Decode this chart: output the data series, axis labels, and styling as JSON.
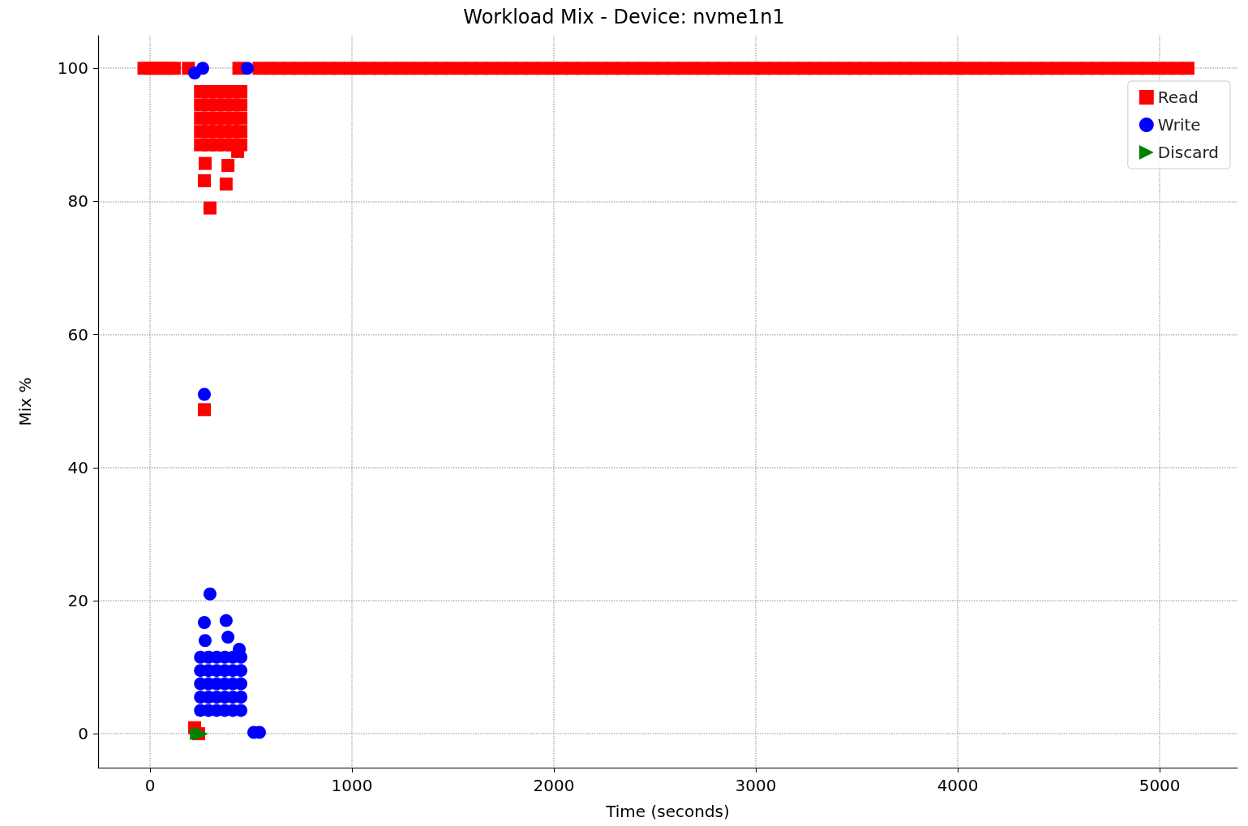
{
  "chart_data": {
    "type": "scatter",
    "title": "Workload Mix - Device: nvme1n1",
    "xlabel": "Time (seconds)",
    "ylabel": "Mix %",
    "xlim": [
      -257,
      5385
    ],
    "ylim": [
      -5.1,
      104.9
    ],
    "xticks": [
      0,
      1000,
      2000,
      3000,
      4000,
      5000
    ],
    "yticks": [
      0,
      20,
      40,
      60,
      80,
      100
    ],
    "grid": true,
    "legend": "top right",
    "series": [
      {
        "name": "Read",
        "color": "#ff0000",
        "marker": "square",
        "x": [
          -30,
          0,
          30,
          60,
          90,
          120,
          190,
          440,
          540,
          590,
          640,
          690,
          740,
          790,
          840,
          890,
          940,
          990,
          1040,
          1090,
          1140,
          1190,
          1240,
          1290,
          1340,
          1390,
          1440,
          1490,
          1540,
          1590,
          1640,
          1690,
          1740,
          1790,
          1840,
          1890,
          1940,
          1990,
          2040,
          2090,
          2140,
          2190,
          2240,
          2290,
          2340,
          2390,
          2440,
          2490,
          2540,
          2590,
          2640,
          2690,
          2740,
          2790,
          2840,
          2890,
          2940,
          2990,
          3040,
          3090,
          3140,
          3190,
          3240,
          3290,
          3340,
          3390,
          3440,
          3490,
          3540,
          3590,
          3640,
          3690,
          3740,
          3790,
          3840,
          3890,
          3940,
          3990,
          4040,
          4090,
          4140,
          4190,
          4240,
          4290,
          4340,
          4390,
          4440,
          4490,
          4540,
          4590,
          4640,
          4690,
          4740,
          4790,
          4840,
          4890,
          4940,
          4990,
          5040,
          5090,
          5140,
          250,
          290,
          330,
          370,
          410,
          450,
          250,
          290,
          330,
          370,
          410,
          450,
          250,
          290,
          330,
          370,
          410,
          450,
          250,
          290,
          330,
          370,
          410,
          450,
          250,
          290,
          330,
          370,
          410,
          450,
          273,
          386,
          269,
          377,
          297,
          434,
          269,
          221,
          241
        ],
        "values": [
          100,
          100,
          100,
          100,
          100,
          100,
          100,
          100,
          100,
          100,
          100,
          100,
          100,
          100,
          100,
          100,
          100,
          100,
          100,
          100,
          100,
          100,
          100,
          100,
          100,
          100,
          100,
          100,
          100,
          100,
          100,
          100,
          100,
          100,
          100,
          100,
          100,
          100,
          100,
          100,
          100,
          100,
          100,
          100,
          100,
          100,
          100,
          100,
          100,
          100,
          100,
          100,
          100,
          100,
          100,
          100,
          100,
          100,
          100,
          100,
          100,
          100,
          100,
          100,
          100,
          100,
          100,
          100,
          100,
          100,
          100,
          100,
          100,
          100,
          100,
          100,
          100,
          100,
          100,
          100,
          100,
          100,
          100,
          100,
          100,
          100,
          100,
          100,
          100,
          100,
          100,
          100,
          100,
          100,
          100,
          100,
          100,
          100,
          100,
          100,
          100,
          88.5,
          88.5,
          88.5,
          88.5,
          88.5,
          88.5,
          90.5,
          90.5,
          90.5,
          90.5,
          90.5,
          90.5,
          92.5,
          92.5,
          92.5,
          92.5,
          92.5,
          92.5,
          94.5,
          94.5,
          94.5,
          94.5,
          94.5,
          94.5,
          96.5,
          96.5,
          96.5,
          96.5,
          96.5,
          96.5,
          85.7,
          85.4,
          83.1,
          82.6,
          79,
          87.5,
          48.7,
          0.9,
          0
        ]
      },
      {
        "name": "Write",
        "color": "#0000ff",
        "marker": "circle",
        "x": [
          221,
          261,
          482,
          269,
          250,
          290,
          330,
          370,
          410,
          450,
          250,
          290,
          330,
          370,
          410,
          450,
          250,
          290,
          330,
          370,
          410,
          450,
          250,
          290,
          330,
          370,
          410,
          450,
          250,
          290,
          330,
          370,
          410,
          450,
          297,
          269,
          377,
          273,
          386,
          442,
          514,
          542
        ],
        "values": [
          99.3,
          100,
          100,
          51,
          3.5,
          3.5,
          3.5,
          3.5,
          3.5,
          3.5,
          5.5,
          5.5,
          5.5,
          5.5,
          5.5,
          5.5,
          7.5,
          7.5,
          7.5,
          7.5,
          7.5,
          7.5,
          9.5,
          9.5,
          9.5,
          9.5,
          9.5,
          9.5,
          11.5,
          11.5,
          11.5,
          11.5,
          11.5,
          11.5,
          21,
          16.7,
          17,
          14,
          14.5,
          12.7,
          0.2,
          0.2
        ]
      },
      {
        "name": "Discard",
        "color": "#008000",
        "marker": "triangle",
        "x": [
          230,
          245,
          255
        ],
        "values": [
          0,
          0,
          0
        ]
      }
    ]
  }
}
